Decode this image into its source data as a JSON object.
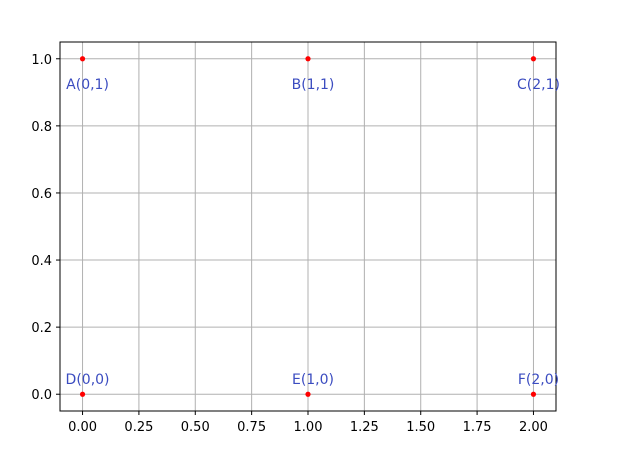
{
  "chart_data": {
    "type": "scatter",
    "title": "",
    "xlabel": "",
    "ylabel": "",
    "xlim": [
      -0.1,
      2.1
    ],
    "ylim": [
      -0.05,
      1.05
    ],
    "grid": true,
    "x_ticks": [
      "0.00",
      "0.25",
      "0.50",
      "0.75",
      "1.00",
      "1.25",
      "1.50",
      "1.75",
      "2.00"
    ],
    "x_tick_values": [
      0,
      0.25,
      0.5,
      0.75,
      1.0,
      1.25,
      1.5,
      1.75,
      2.0
    ],
    "y_ticks": [
      "0.0",
      "0.2",
      "0.4",
      "0.6",
      "0.8",
      "1.0"
    ],
    "y_tick_values": [
      0,
      0.2,
      0.4,
      0.6,
      0.8,
      1.0
    ],
    "point_color": "#ff0000",
    "label_color": "#3b4cc0",
    "grid_color": "#b0b0b0",
    "points": [
      {
        "label": "A(0,1)",
        "x": 0,
        "y": 1,
        "label_pos": "below"
      },
      {
        "label": "B(1,1)",
        "x": 1,
        "y": 1,
        "label_pos": "below"
      },
      {
        "label": "C(2,1)",
        "x": 2,
        "y": 1,
        "label_pos": "below"
      },
      {
        "label": "D(0,0)",
        "x": 0,
        "y": 0,
        "label_pos": "above"
      },
      {
        "label": "E(1,0)",
        "x": 1,
        "y": 0,
        "label_pos": "above"
      },
      {
        "label": "F(2,0)",
        "x": 2,
        "y": 0,
        "label_pos": "above"
      }
    ]
  }
}
